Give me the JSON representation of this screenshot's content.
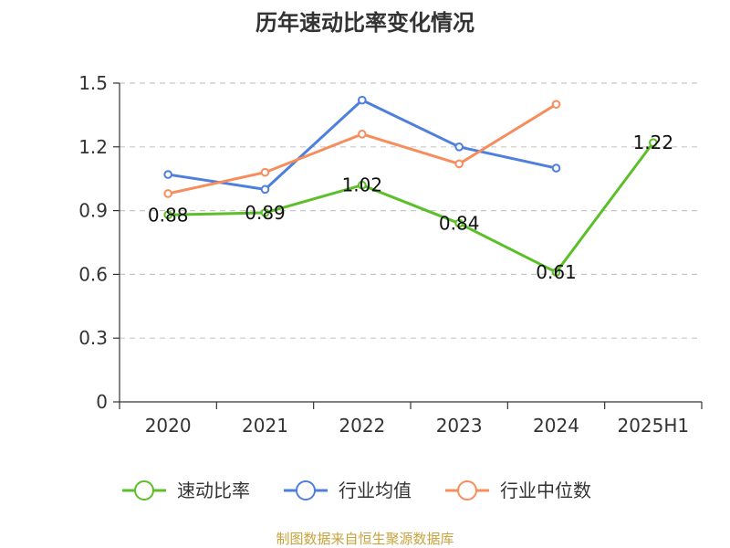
{
  "chart_data": {
    "type": "line",
    "title": "历年速动比率变化情况",
    "categories": [
      "2020",
      "2021",
      "2022",
      "2023",
      "2024",
      "2025H1"
    ],
    "ylim": [
      0,
      1.5
    ],
    "yticks": [
      "0",
      "0.3",
      "0.6",
      "0.9",
      "1.2",
      "1.5"
    ],
    "grid": true,
    "legend_position": "bottom",
    "series": [
      {
        "name": "速动比率",
        "color": "#5cbf2a",
        "values": [
          0.88,
          0.89,
          1.02,
          0.84,
          0.61,
          1.22
        ],
        "labels": [
          "0.88",
          "0.89",
          "1.02",
          "0.84",
          "0.61",
          "1.22"
        ]
      },
      {
        "name": "行业均值",
        "color": "#4f7fdc",
        "values": [
          1.07,
          1.0,
          1.42,
          1.2,
          1.1,
          null
        ]
      },
      {
        "name": "行业中位数",
        "color": "#f78d5c",
        "values": [
          0.98,
          1.08,
          1.26,
          1.12,
          1.4,
          null
        ]
      }
    ]
  },
  "source": "制图数据来自恒生聚源数据库"
}
